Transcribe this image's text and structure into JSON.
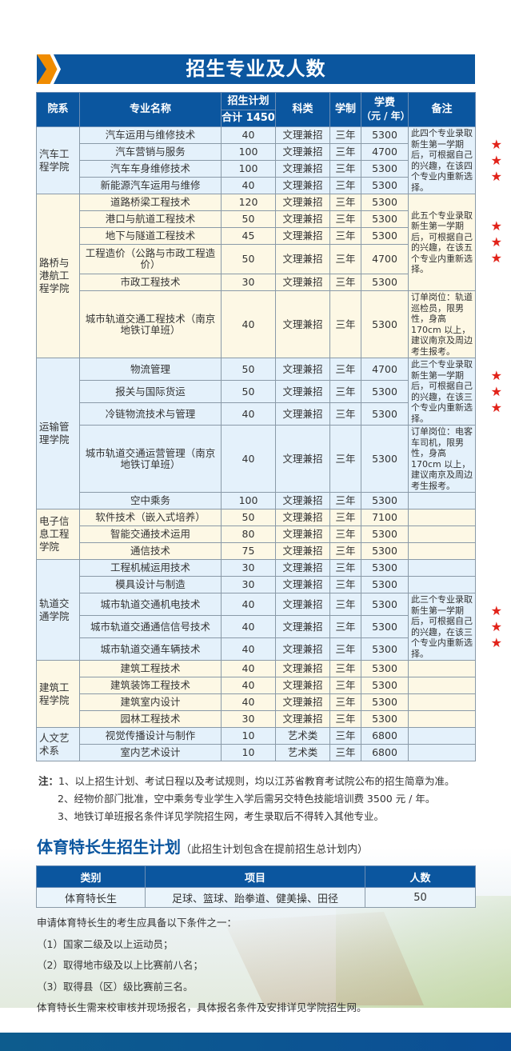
{
  "title": "招生专业及人数",
  "table": {
    "headers": {
      "dept": "院系",
      "major": "专业名称",
      "plan": "招生计划",
      "plan_total": "合计 1450",
      "category": "科类",
      "years": "学制",
      "fee": "学费",
      "fee_unit": "（元 / 年）",
      "remark": "备注"
    },
    "groups": [
      {
        "dept": "汽车工程学院",
        "color": "#e4f1fb",
        "rows": [
          {
            "major": "汽车运用与维修技术",
            "plan": "40",
            "category": "文理兼招",
            "years": "三年",
            "fee": "5300"
          },
          {
            "major": "汽车营销与服务",
            "plan": "100",
            "category": "文理兼招",
            "years": "三年",
            "fee": "4700"
          },
          {
            "major": "汽车车身维修技术",
            "plan": "100",
            "category": "文理兼招",
            "years": "三年",
            "fee": "5300"
          },
          {
            "major": "新能源汽车运用与维修",
            "plan": "40",
            "category": "文理兼招",
            "years": "三年",
            "fee": "5300"
          }
        ],
        "remarks": [
          {
            "start": 0,
            "span": 4,
            "text": "此四个专业录取新生第一学期后，可根据自己的兴趣，在该四个专业内重新选择。",
            "stars": 3
          }
        ]
      },
      {
        "dept": "路桥与港航工程学院",
        "color": "#fdf8e5",
        "rows": [
          {
            "major": "道路桥梁工程技术",
            "plan": "120",
            "category": "文理兼招",
            "years": "三年",
            "fee": "5300"
          },
          {
            "major": "港口与航道工程技术",
            "plan": "50",
            "category": "文理兼招",
            "years": "三年",
            "fee": "5300"
          },
          {
            "major": "地下与隧道工程技术",
            "plan": "45",
            "category": "文理兼招",
            "years": "三年",
            "fee": "5300"
          },
          {
            "major": "工程造价（公路与市政工程造价）",
            "plan": "50",
            "category": "文理兼招",
            "years": "三年",
            "fee": "4700"
          },
          {
            "major": "市政工程技术",
            "plan": "30",
            "category": "文理兼招",
            "years": "三年",
            "fee": "5300"
          },
          {
            "major": "城市轨道交通工程技术（南京地铁订单班）",
            "plan": "40",
            "category": "文理兼招",
            "years": "三年",
            "fee": "5300"
          }
        ],
        "remarks": [
          {
            "start": 0,
            "span": 5,
            "text": "此五个专业录取新生第一学期后，可根据自己的兴趣，在该五个专业内重新选择。",
            "stars": 3
          },
          {
            "start": 5,
            "span": 1,
            "text": "订单岗位：轨道巡检员，限男性，身高 170cm 以上，建议南京及周边考生报考。",
            "stars": 0
          }
        ]
      },
      {
        "dept": "运输管理学院",
        "color": "#e4f1fb",
        "rows": [
          {
            "major": "物流管理",
            "plan": "50",
            "category": "文理兼招",
            "years": "三年",
            "fee": "4700"
          },
          {
            "major": "报关与国际货运",
            "plan": "50",
            "category": "文理兼招",
            "years": "三年",
            "fee": "5300"
          },
          {
            "major": "冷链物流技术与管理",
            "plan": "40",
            "category": "文理兼招",
            "years": "三年",
            "fee": "5300"
          },
          {
            "major": "城市轨道交通运营管理（南京地铁订单班）",
            "plan": "40",
            "category": "文理兼招",
            "years": "三年",
            "fee": "5300"
          },
          {
            "major": "空中乘务",
            "plan": "100",
            "category": "文理兼招",
            "years": "三年",
            "fee": "5300"
          }
        ],
        "remarks": [
          {
            "start": 0,
            "span": 3,
            "text": "此三个专业录取新生第一学期后，可根据自己的兴趣，在该三个专业内重新选择。",
            "stars": 3
          },
          {
            "start": 3,
            "span": 1,
            "text": "订单岗位：电客车司机，限男性，身高 170cm 以上，建议南京及周边考生报考。",
            "stars": 0
          },
          {
            "start": 4,
            "span": 1,
            "text": "",
            "stars": 0
          }
        ]
      },
      {
        "dept": "电子信息工程学院",
        "color": "#fdf8e5",
        "rows": [
          {
            "major": "软件技术（嵌入式培养）",
            "plan": "50",
            "category": "文理兼招",
            "years": "三年",
            "fee": "7100"
          },
          {
            "major": "智能交通技术运用",
            "plan": "80",
            "category": "文理兼招",
            "years": "三年",
            "fee": "5300"
          },
          {
            "major": "通信技术",
            "plan": "75",
            "category": "文理兼招",
            "years": "三年",
            "fee": "5300"
          }
        ],
        "remarks": []
      },
      {
        "dept": "轨道交通学院",
        "color": "#e4f1fb",
        "rows": [
          {
            "major": "工程机械运用技术",
            "plan": "30",
            "category": "文理兼招",
            "years": "三年",
            "fee": "5300"
          },
          {
            "major": "模具设计与制造",
            "plan": "30",
            "category": "文理兼招",
            "years": "三年",
            "fee": "5300"
          },
          {
            "major": "城市轨道交通机电技术",
            "plan": "40",
            "category": "文理兼招",
            "years": "三年",
            "fee": "5300"
          },
          {
            "major": "城市轨道交通通信信号技术",
            "plan": "40",
            "category": "文理兼招",
            "years": "三年",
            "fee": "5300"
          },
          {
            "major": "城市轨道交通车辆技术",
            "plan": "40",
            "category": "文理兼招",
            "years": "三年",
            "fee": "5300"
          }
        ],
        "remarks": [
          {
            "start": 2,
            "span": 3,
            "text": "此三个专业录取新生第一学期后，可根据自己的兴趣，在该三个专业内重新选择。",
            "stars": 3
          }
        ]
      },
      {
        "dept": "建筑工程学院",
        "color": "#fdf8e5",
        "rows": [
          {
            "major": "建筑工程技术",
            "plan": "40",
            "category": "文理兼招",
            "years": "三年",
            "fee": "5300"
          },
          {
            "major": "建筑装饰工程技术",
            "plan": "40",
            "category": "文理兼招",
            "years": "三年",
            "fee": "5300"
          },
          {
            "major": "建筑室内设计",
            "plan": "40",
            "category": "文理兼招",
            "years": "三年",
            "fee": "5300"
          },
          {
            "major": "园林工程技术",
            "plan": "30",
            "category": "文理兼招",
            "years": "三年",
            "fee": "5300"
          }
        ],
        "remarks": []
      },
      {
        "dept": "人文艺术系",
        "color": "#e4f1fb",
        "rows": [
          {
            "major": "视觉传播设计与制作",
            "plan": "10",
            "category": "艺术类",
            "years": "三年",
            "fee": "6800"
          },
          {
            "major": "室内艺术设计",
            "plan": "10",
            "category": "艺术类",
            "years": "三年",
            "fee": "6800"
          }
        ],
        "remarks": []
      }
    ]
  },
  "notes": {
    "lead": "注：",
    "items": [
      "1、以上招生计划、考试日程以及考试规则，均以江苏省教育考试院公布的招生简章为准。",
      "2、经物价部门批准，空中乘务专业学生入学后需另交特色技能培训费 3500 元 / 年。",
      "3、地铁订单班报名条件详见学院招生网，考生录取后不得转入其他专业。"
    ]
  },
  "sports": {
    "title": "体育特长生招生计划",
    "subtitle": "（此招生计划包含在提前招生总计划内）",
    "headers": [
      "类别",
      "项目",
      "人数"
    ],
    "row": [
      "体育特长生",
      "足球、篮球、跆拳道、健美操、田径",
      "50"
    ],
    "intro": "申请体育特长生的考生应具备以下条件之一：",
    "conditions": [
      "（1）国家二级及以上运动员；",
      "（2）取得地市级及以上比赛前八名；",
      "（3）取得县（区）级比赛前三名。"
    ],
    "footer": "体育特长生需来校审核并现场报名，具体报名条件及安排详见学院招生网。"
  },
  "colors": {
    "header_blue": "#0b569f",
    "accent_orange": "#f08c00",
    "star_red": "#e2231a"
  }
}
